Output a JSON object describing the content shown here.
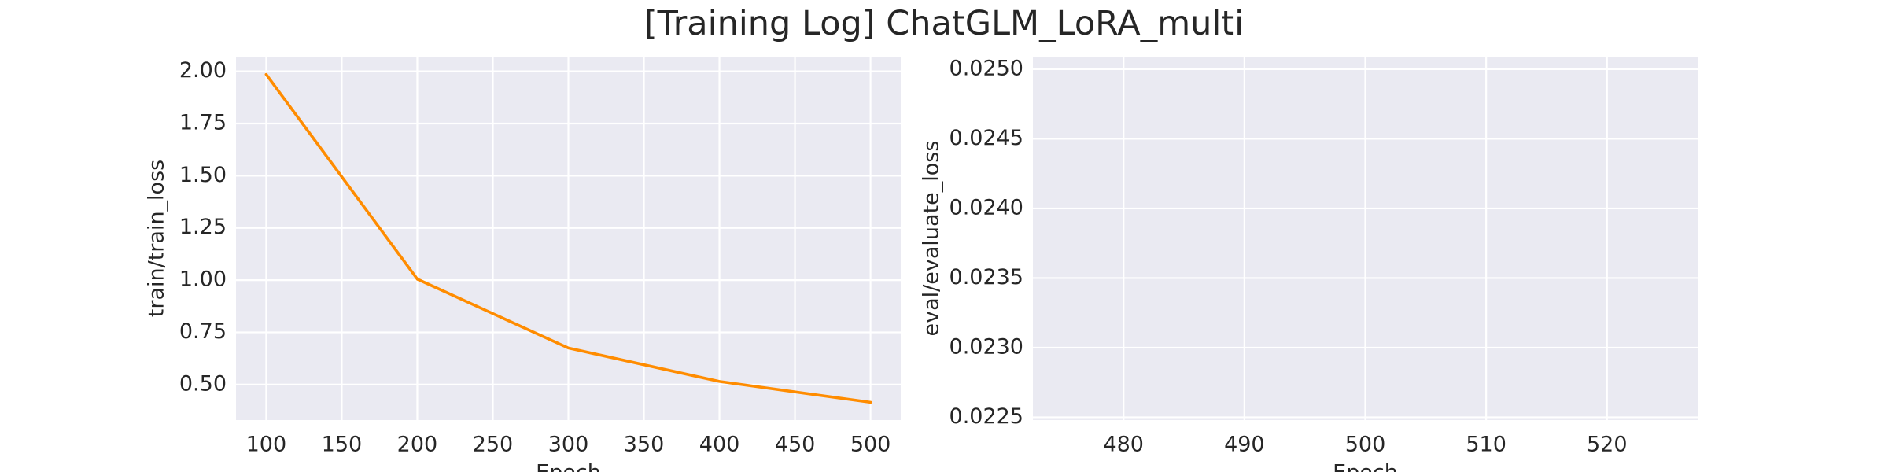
{
  "title": "[Training Log] ChatGLM_LoRA_multi",
  "chart_data": [
    {
      "type": "line",
      "xlabel": "Epoch",
      "ylabel": "train/train_loss",
      "xlim": [
        80,
        520
      ],
      "ylim": [
        0.33,
        2.07
      ],
      "xticks": [
        100,
        150,
        200,
        250,
        300,
        350,
        400,
        450,
        500
      ],
      "yticks": [
        0.5,
        0.75,
        1.0,
        1.25,
        1.5,
        1.75,
        2.0
      ],
      "xtick_labels": [
        "100",
        "150",
        "200",
        "250",
        "300",
        "350",
        "400",
        "450",
        "500"
      ],
      "ytick_labels": [
        "0.50",
        "0.75",
        "1.00",
        "1.25",
        "1.50",
        "1.75",
        "2.00"
      ],
      "grid": true,
      "series": [
        {
          "color": "#ff8c00",
          "x": [
            100,
            200,
            300,
            400,
            500
          ],
          "y": [
            1.985,
            1.005,
            0.675,
            0.515,
            0.415
          ]
        }
      ]
    },
    {
      "type": "line",
      "xlabel": "Epoch",
      "ylabel": "eval/evaluate_loss",
      "xlim": [
        472.5,
        527.5
      ],
      "ylim": [
        0.02248,
        0.02509
      ],
      "xticks": [
        480,
        490,
        500,
        510,
        520
      ],
      "yticks": [
        0.0225,
        0.023,
        0.0235,
        0.024,
        0.0245,
        0.025
      ],
      "xtick_labels": [
        "480",
        "490",
        "500",
        "510",
        "520"
      ],
      "ytick_labels": [
        "0.0225",
        "0.0230",
        "0.0235",
        "0.0240",
        "0.0245",
        "0.0250"
      ],
      "grid": true,
      "series": []
    }
  ]
}
